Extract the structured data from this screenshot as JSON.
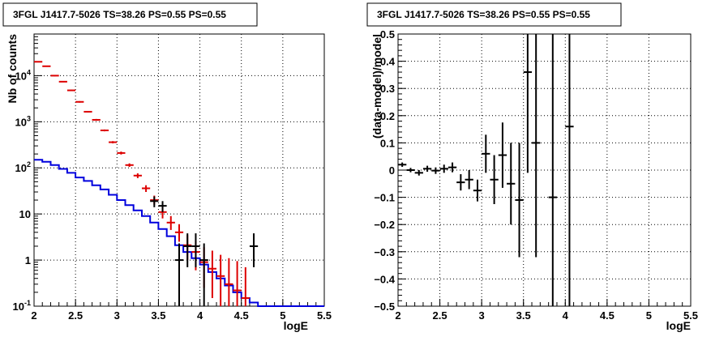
{
  "chart_data": [
    {
      "type": "line",
      "title": "3FGL J1417.7-5026 TS=38.26 PS=0.55 PS=0.55",
      "xlabel": "logE",
      "ylabel": "Nb of counts",
      "xlim": [
        2,
        5.5
      ],
      "ylim": [
        0.1,
        80000
      ],
      "yscale": "log",
      "grid": true,
      "x_ticks": [
        "2",
        "2.5",
        "3",
        "3.5",
        "4",
        "4.5",
        "5",
        "5.5"
      ],
      "y_ticks": [
        {
          "base": "10",
          "exp": "-1"
        },
        {
          "base": "1",
          "exp": ""
        },
        {
          "base": "10",
          "exp": ""
        },
        {
          "base": "10",
          "exp": "2"
        },
        {
          "base": "10",
          "exp": "3"
        },
        {
          "base": "10",
          "exp": "4"
        }
      ],
      "series": [
        {
          "role": "data",
          "color": "#000000",
          "points": [
            {
              "x": 3.45,
              "y": 19,
              "ylo": 14,
              "yhi": 24
            },
            {
              "x": 3.55,
              "y": 15,
              "ylo": 11,
              "yhi": 19
            },
            {
              "x": 3.75,
              "y": 1,
              "ylo": 0.1,
              "yhi": 2.3
            },
            {
              "x": 3.85,
              "y": 2,
              "ylo": 0.7,
              "yhi": 3.8
            },
            {
              "x": 3.95,
              "y": 2,
              "ylo": 0.7,
              "yhi": 3.8
            },
            {
              "x": 4.05,
              "y": 1,
              "ylo": 0.1,
              "yhi": 2.3
            },
            {
              "x": 4.65,
              "y": 2,
              "ylo": 0.7,
              "yhi": 3.8
            }
          ]
        },
        {
          "role": "model counts",
          "color": "#dd0000",
          "points": [
            {
              "x": 2.05,
              "y": 20000,
              "ylo": 19500,
              "yhi": 20500
            },
            {
              "x": 2.15,
              "y": 16000,
              "ylo": 15600,
              "yhi": 16400
            },
            {
              "x": 2.25,
              "y": 10000,
              "ylo": 9700,
              "yhi": 10300
            },
            {
              "x": 2.35,
              "y": 7400,
              "ylo": 7200,
              "yhi": 7600
            },
            {
              "x": 2.45,
              "y": 4800,
              "ylo": 4650,
              "yhi": 4950
            },
            {
              "x": 2.55,
              "y": 2700,
              "ylo": 2600,
              "yhi": 2800
            },
            {
              "x": 2.65,
              "y": 1650,
              "ylo": 1600,
              "yhi": 1700
            },
            {
              "x": 2.75,
              "y": 1100,
              "ylo": 1050,
              "yhi": 1150
            },
            {
              "x": 2.85,
              "y": 650,
              "ylo": 620,
              "yhi": 680
            },
            {
              "x": 2.95,
              "y": 360,
              "ylo": 340,
              "yhi": 380
            },
            {
              "x": 3.05,
              "y": 210,
              "ylo": 195,
              "yhi": 225
            },
            {
              "x": 3.15,
              "y": 115,
              "ylo": 105,
              "yhi": 125
            },
            {
              "x": 3.25,
              "y": 68,
              "ylo": 60,
              "yhi": 76
            },
            {
              "x": 3.35,
              "y": 36,
              "ylo": 30,
              "yhi": 42
            },
            {
              "x": 3.45,
              "y": 20,
              "ylo": 16,
              "yhi": 25
            },
            {
              "x": 3.55,
              "y": 11,
              "ylo": 8,
              "yhi": 14.5
            },
            {
              "x": 3.65,
              "y": 6.5,
              "ylo": 4.5,
              "yhi": 9
            },
            {
              "x": 3.75,
              "y": 4,
              "ylo": 2.5,
              "yhi": 6
            },
            {
              "x": 3.85,
              "y": 2.1,
              "ylo": 1,
              "yhi": 3.5
            },
            {
              "x": 3.95,
              "y": 1.5,
              "ylo": 0.6,
              "yhi": 2.6
            },
            {
              "x": 4.05,
              "y": 0.9,
              "ylo": 0.25,
              "yhi": 1.9
            },
            {
              "x": 4.15,
              "y": 0.65,
              "ylo": 0.15,
              "yhi": 1.6
            },
            {
              "x": 4.25,
              "y": 0.45,
              "ylo": 0.1,
              "yhi": 1.3
            },
            {
              "x": 4.35,
              "y": 0.3,
              "ylo": 0.1,
              "yhi": 1.1
            },
            {
              "x": 4.45,
              "y": 0.22,
              "ylo": 0.1,
              "yhi": 0.95
            },
            {
              "x": 4.55,
              "y": 0.15,
              "ylo": 0.1,
              "yhi": 0.7
            }
          ]
        },
        {
          "role": "source model",
          "color": "#0000dd",
          "step_edges": [
            2.0,
            2.1,
            2.2,
            2.3,
            2.4,
            2.5,
            2.6,
            2.7,
            2.8,
            2.9,
            3.0,
            3.1,
            3.2,
            3.3,
            3.4,
            3.5,
            3.6,
            3.7,
            3.8,
            3.9,
            4.0,
            4.1,
            4.2,
            4.3,
            4.4,
            4.5,
            4.6,
            4.7,
            5.5
          ],
          "step_values": [
            150,
            135,
            115,
            95,
            78,
            62,
            52,
            42,
            34,
            26,
            20,
            15.5,
            12,
            9,
            6.5,
            4.7,
            3.3,
            2.1,
            1.5,
            1.1,
            0.8,
            0.55,
            0.4,
            0.28,
            0.2,
            0.15,
            0.12,
            0.1
          ]
        }
      ]
    },
    {
      "type": "scatter",
      "title": "3FGL J1417.7-5026 TS=38.26 PS=0.55 PS=0.55",
      "xlabel": "logE",
      "ylabel": "(data-model)/model",
      "xlim": [
        2,
        5.5
      ],
      "ylim": [
        -0.5,
        0.5
      ],
      "grid": true,
      "x_ticks": [
        "2",
        "2.5",
        "3",
        "3.5",
        "4",
        "4.5",
        "5",
        "5.5"
      ],
      "y_ticks": [
        "−0.5",
        "−0.4",
        "−0.3",
        "−0.2",
        "−0.1",
        "0",
        "0.1",
        "0.2",
        "0.3",
        "0.4",
        "0.5"
      ],
      "series": [
        {
          "role": "residuals",
          "color": "#000000",
          "points": [
            {
              "x": 2.05,
              "y": 0.02,
              "ylo": 0.012,
              "yhi": 0.028
            },
            {
              "x": 2.15,
              "y": 0.0,
              "ylo": -0.008,
              "yhi": 0.008
            },
            {
              "x": 2.25,
              "y": -0.01,
              "ylo": -0.02,
              "yhi": 0.0
            },
            {
              "x": 2.35,
              "y": 0.005,
              "ylo": -0.006,
              "yhi": 0.016
            },
            {
              "x": 2.45,
              "y": -0.002,
              "ylo": -0.014,
              "yhi": 0.01
            },
            {
              "x": 2.55,
              "y": 0.005,
              "ylo": -0.01,
              "yhi": 0.02
            },
            {
              "x": 2.65,
              "y": 0.01,
              "ylo": -0.008,
              "yhi": 0.028
            },
            {
              "x": 2.75,
              "y": -0.045,
              "ylo": -0.075,
              "yhi": -0.015
            },
            {
              "x": 2.85,
              "y": -0.035,
              "ylo": -0.07,
              "yhi": 0.0
            },
            {
              "x": 2.95,
              "y": -0.075,
              "ylo": -0.115,
              "yhi": -0.035
            },
            {
              "x": 3.05,
              "y": 0.06,
              "ylo": -0.01,
              "yhi": 0.13
            },
            {
              "x": 3.15,
              "y": -0.035,
              "ylo": -0.125,
              "yhi": 0.055
            },
            {
              "x": 3.25,
              "y": 0.055,
              "ylo": -0.065,
              "yhi": 0.175
            },
            {
              "x": 3.35,
              "y": -0.05,
              "ylo": -0.2,
              "yhi": 0.1
            },
            {
              "x": 3.45,
              "y": -0.11,
              "ylo": -0.32,
              "yhi": 0.1
            },
            {
              "x": 3.55,
              "y": 0.36,
              "ylo": -0.01,
              "yhi": 0.5
            },
            {
              "x": 3.65,
              "y": 0.1,
              "ylo": -0.32,
              "yhi": 0.5
            },
            {
              "x": 3.85,
              "y": -0.1,
              "ylo": -0.5,
              "yhi": 0.5
            },
            {
              "x": 4.05,
              "y": 0.16,
              "ylo": -0.5,
              "yhi": 0.5
            }
          ]
        }
      ]
    }
  ]
}
